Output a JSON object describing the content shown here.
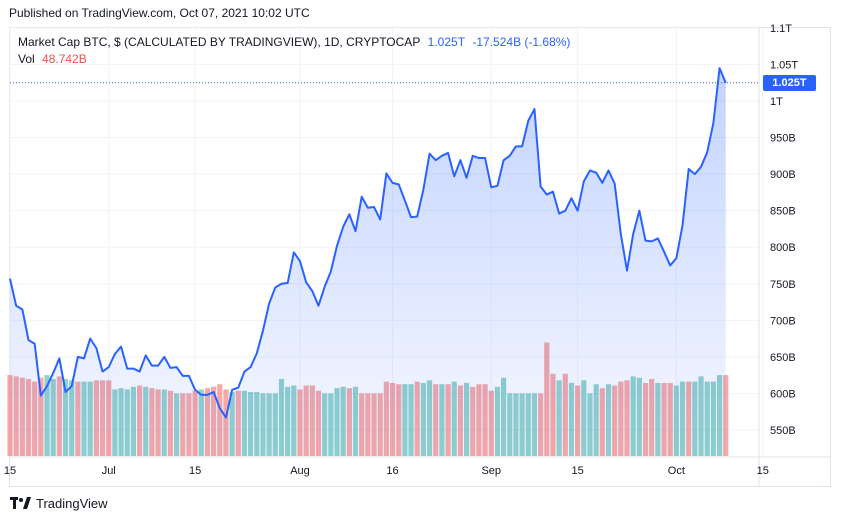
{
  "header": {
    "published": "Published on TradingView.com, Oct 07, 2021 10:02 UTC"
  },
  "legend": {
    "symbol": "Market Cap BTC, $ (CALCULATED BY TRADINGVIEW), 1D, CRYPTOCAP",
    "last_value": "1.025T",
    "change": "-17.524B (-1.68%)",
    "volume_label": "Vol",
    "volume_value": "48.742B"
  },
  "price_tag": "1.025T",
  "footer": {
    "brand": "TradingView"
  },
  "colors": {
    "line": "#2962ff",
    "up_volume": "#26a69a",
    "down_volume": "#ef5350"
  },
  "chart_data": {
    "type": "area",
    "title": "Market Cap BTC, $ (CALCULATED BY TRADINGVIEW), 1D, CRYPTOCAP",
    "y_unit": "billion USD",
    "ylim": [
      510,
      1120
    ],
    "y_ticks": [
      {
        "label": "1.1T",
        "value": 1100
      },
      {
        "label": "1.05T",
        "value": 1050
      },
      {
        "label": "1T",
        "value": 1000
      },
      {
        "label": "950B",
        "value": 950
      },
      {
        "label": "900B",
        "value": 900
      },
      {
        "label": "850B",
        "value": 850
      },
      {
        "label": "800B",
        "value": 800
      },
      {
        "label": "750B",
        "value": 750
      },
      {
        "label": "700B",
        "value": 700
      },
      {
        "label": "650B",
        "value": 650
      },
      {
        "label": "600B",
        "value": 600
      },
      {
        "label": "550B",
        "value": 550
      }
    ],
    "x_start_day": 0,
    "x_end_day": 116,
    "x_ticks": [
      {
        "label": "15",
        "day": 0
      },
      {
        "label": "Jul",
        "day": 16
      },
      {
        "label": "15",
        "day": 30
      },
      {
        "label": "Aug",
        "day": 47
      },
      {
        "label": "16",
        "day": 62
      },
      {
        "label": "Sep",
        "day": 78
      },
      {
        "label": "15",
        "day": 92
      },
      {
        "label": "Oct",
        "day": 108
      },
      {
        "label": "15",
        "day": 122
      }
    ],
    "market_cap": [
      757,
      720,
      715,
      673,
      668,
      597,
      610,
      628,
      648,
      602,
      610,
      650,
      648,
      675,
      662,
      630,
      636,
      654,
      664,
      634,
      634,
      630,
      652,
      638,
      638,
      650,
      635,
      636,
      624,
      624,
      605,
      598,
      598,
      602,
      580,
      567,
      605,
      608,
      630,
      636,
      655,
      686,
      723,
      745,
      750,
      751,
      793,
      781,
      752,
      740,
      720,
      746,
      767,
      802,
      828,
      845,
      822,
      869,
      854,
      855,
      838,
      901,
      888,
      886,
      864,
      841,
      842,
      879,
      928,
      919,
      925,
      929,
      897,
      919,
      895,
      925,
      922,
      922,
      882,
      884,
      919,
      925,
      938,
      938,
      973,
      989,
      883,
      872,
      876,
      846,
      850,
      867,
      850,
      890,
      905,
      902,
      888,
      905,
      887,
      818,
      768,
      818,
      850,
      809,
      808,
      812,
      794,
      775,
      785,
      830,
      907,
      900,
      910,
      930,
      970,
      1045,
      1025
    ],
    "volume": [
      62,
      61,
      60,
      59,
      57,
      60,
      62,
      59,
      61,
      59,
      58,
      57,
      57,
      57,
      58,
      58,
      58,
      51,
      52,
      51,
      53,
      54,
      53,
      52,
      51,
      51,
      50,
      48,
      48,
      48,
      50,
      51,
      52,
      53,
      55,
      51,
      49,
      50,
      50,
      49,
      49,
      48,
      48,
      48,
      59,
      53,
      54,
      51,
      54,
      54,
      50,
      48,
      48,
      52,
      53,
      52,
      53,
      48,
      48,
      48,
      48,
      57,
      56,
      55,
      55,
      55,
      57,
      56,
      58,
      55,
      55,
      55,
      57,
      54,
      56,
      53,
      55,
      55,
      50,
      53,
      60,
      48,
      48,
      48,
      48,
      48,
      48,
      87,
      63,
      58,
      63,
      56,
      54,
      58,
      48,
      55,
      52,
      55,
      54,
      57,
      58,
      61,
      60,
      56,
      59,
      56,
      56,
      56,
      54,
      57,
      57,
      57,
      61,
      57,
      57,
      62,
      62
    ],
    "volume_up": [
      false,
      false,
      false,
      false,
      false,
      false,
      true,
      true,
      false,
      true,
      true,
      false,
      true,
      true,
      false,
      false,
      false,
      true,
      true,
      true,
      true,
      false,
      true,
      false,
      false,
      true,
      false,
      true,
      false,
      false,
      false,
      true,
      false,
      false,
      false,
      false,
      true,
      false,
      true,
      true,
      true,
      true,
      true,
      true,
      true,
      true,
      true,
      false,
      false,
      false,
      false,
      true,
      true,
      true,
      true,
      false,
      true,
      false,
      false,
      false,
      false,
      false,
      false,
      false,
      true,
      true,
      false,
      true,
      true,
      false,
      true,
      false,
      true,
      false,
      true,
      false,
      false,
      false,
      false,
      true,
      true,
      true,
      true,
      true,
      true,
      true,
      false,
      false,
      false,
      true,
      false,
      true,
      false,
      true,
      true,
      true,
      false,
      true,
      false,
      false,
      false,
      true,
      true,
      false,
      false,
      true,
      false,
      false,
      true,
      true,
      false,
      true,
      true,
      true,
      true,
      true,
      false
    ]
  }
}
